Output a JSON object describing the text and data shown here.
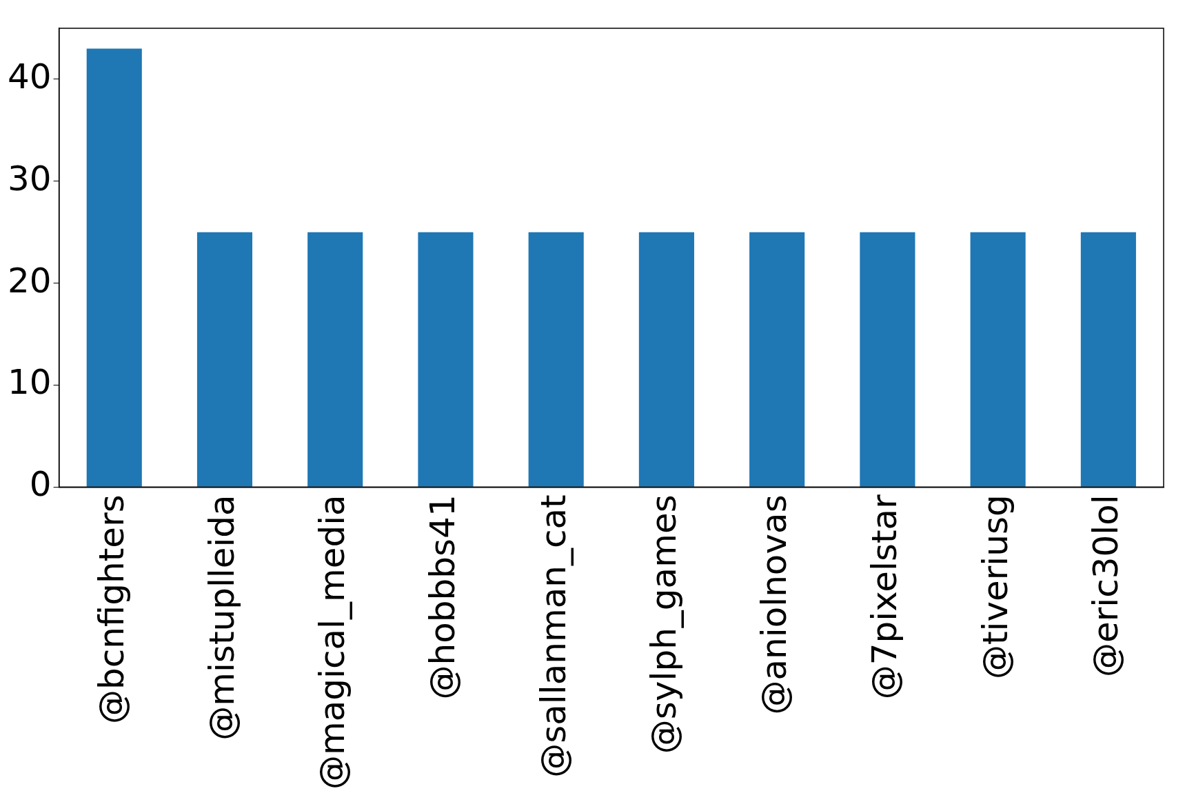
{
  "chart_data": {
    "type": "bar",
    "categories": [
      "@bcnfighters",
      "@mistuplleida",
      "@magical_media",
      "@hobbbs41",
      "@sallanman_cat",
      "@sylph_games",
      "@aniolnovas",
      "@7pixelstar",
      "@tiveriusg",
      "@eric30lol"
    ],
    "values": [
      43,
      25,
      25,
      25,
      25,
      25,
      25,
      25,
      25,
      25
    ],
    "color": "#1f77b4",
    "ylim": [
      0,
      45
    ],
    "yticks": [
      0,
      10,
      20,
      30,
      40
    ],
    "grid": false,
    "legend": false
  }
}
